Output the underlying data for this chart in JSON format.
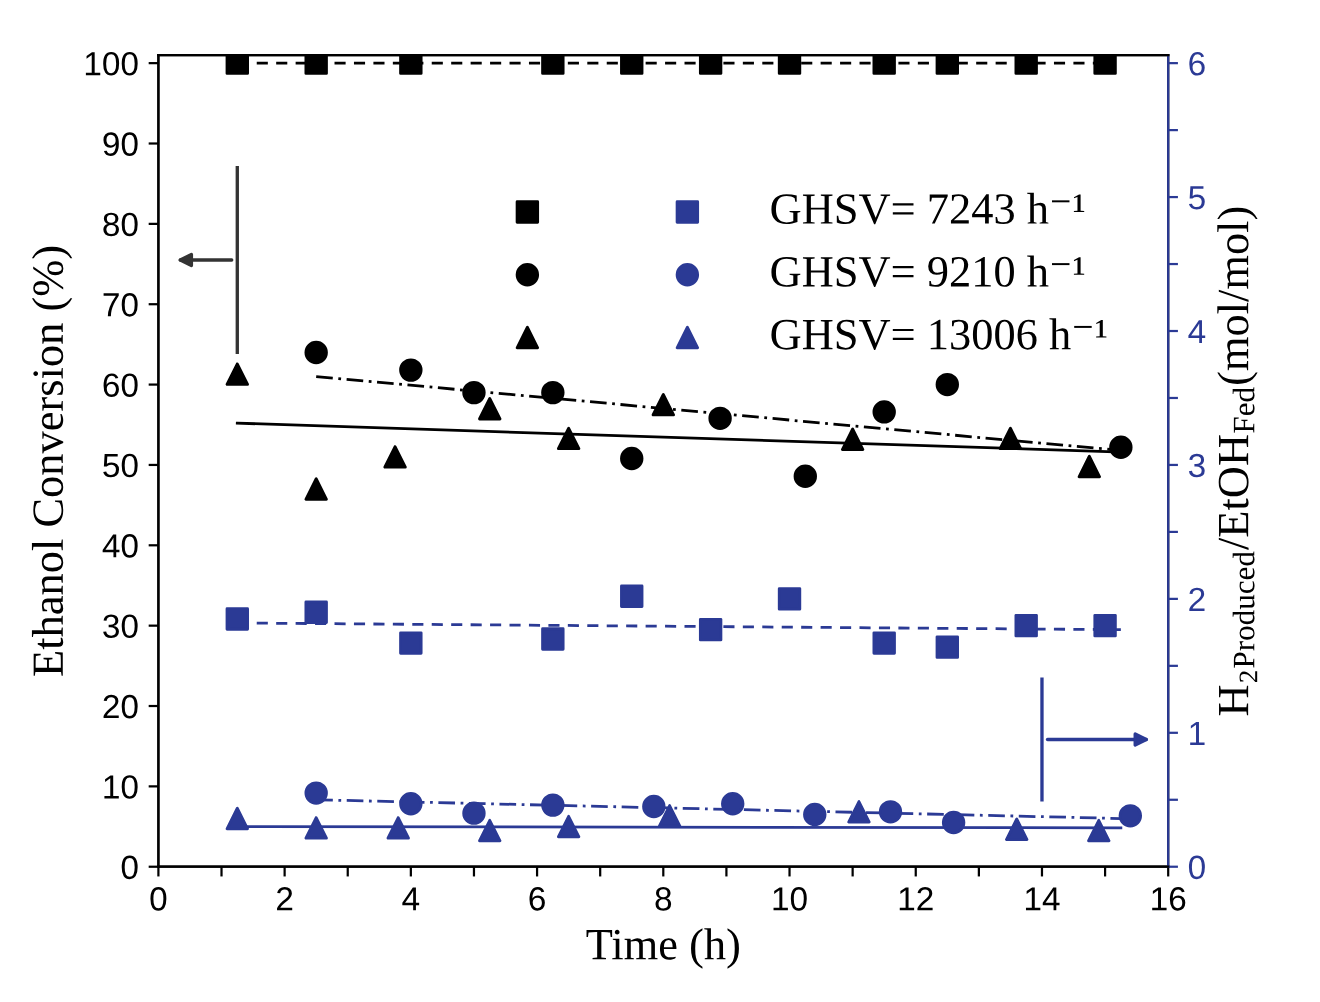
{
  "chart_data": {
    "type": "scatter",
    "xlabel": "Time (h)",
    "ylabel": "Ethanol Conversion (%)",
    "y2label": "H₂$_{Produced}$/EtOH$_{Fed}$(mol/mol)",
    "xlim": [
      0,
      16
    ],
    "xticks": [
      0,
      {
        "value": 1,
        "label": null
      },
      2,
      {
        "value": 3,
        "label": null
      },
      4,
      {
        "value": 5,
        "label": null
      },
      6,
      {
        "value": 7,
        "label": null
      },
      8,
      {
        "value": 9,
        "label": null
      },
      10,
      {
        "value": 11,
        "label": null
      },
      12,
      {
        "value": 13,
        "label": null
      },
      14,
      {
        "value": 15,
        "label": null
      },
      16
    ],
    "ylim": [
      0,
      101
    ],
    "yticks": [
      0,
      10,
      20,
      30,
      40,
      50,
      60,
      70,
      80,
      90,
      100
    ],
    "y2lim": [
      0,
      6.06
    ],
    "y2ticks": [
      0,
      {
        "value": 0.5,
        "label": null
      },
      1,
      {
        "value": 1.5,
        "label": null
      },
      2,
      {
        "value": 2.5,
        "label": null
      },
      3,
      {
        "value": 3.5,
        "label": null
      },
      4,
      {
        "value": 4.5,
        "label": null
      },
      5,
      {
        "value": 5.5,
        "label": null
      },
      6
    ],
    "legend": "top right",
    "grid": false,
    "series": [
      {
        "color": "#000000",
        "marker": "square",
        "x": [
          1.25,
          2.5,
          4,
          6.25,
          7.5,
          8.75,
          10,
          11.5,
          12.5,
          13.75,
          15
        ],
        "values": [
          100,
          100,
          100,
          100,
          100,
          100,
          100,
          100,
          100,
          100,
          100
        ]
      },
      {
        "color": "#000000",
        "marker": "circle",
        "x": [
          2.5,
          4,
          5,
          6.25,
          7.5,
          8.9,
          10.25,
          11.5,
          12.5,
          15.25
        ],
        "values": [
          64,
          61.8,
          59,
          59,
          50.8,
          55.8,
          48.6,
          56.6,
          60,
          52.2
        ]
      },
      {
        "color": "#000000",
        "marker": "triangle",
        "x": [
          1.25,
          2.5,
          3.75,
          5.25,
          6.5,
          8,
          11,
          13.5,
          14.75
        ],
        "values": [
          61.3,
          47,
          51,
          57,
          53.3,
          57.5,
          53.2,
          53.3,
          49.8
        ]
      },
      {
        "name": "GHSV= 7243 h⁻¹",
        "color": "#2b3a95",
        "marker": "square",
        "axis": "y2",
        "x": [
          1.25,
          2.5,
          4,
          6.25,
          7.5,
          8.75,
          10,
          11.5,
          12.5,
          13.75,
          15
        ],
        "values": [
          1.85,
          1.9,
          1.67,
          1.7,
          2.02,
          1.77,
          2.0,
          1.67,
          1.64,
          1.8,
          1.8
        ]
      },
      {
        "name": "GHSV= 9210 h⁻¹",
        "color": "#2b3a95",
        "marker": "circle",
        "axis": "y2",
        "x": [
          2.5,
          4,
          5,
          6.25,
          7.85,
          9.1,
          10.4,
          11.6,
          12.6,
          15.4
        ],
        "values": [
          0.55,
          0.47,
          0.4,
          0.46,
          0.45,
          0.47,
          0.39,
          0.41,
          0.33,
          0.38
        ]
      },
      {
        "name": "GHSV= 13006 h⁻¹",
        "color": "#2b3a95",
        "marker": "triangle",
        "axis": "y2",
        "x": [
          1.25,
          2.5,
          3.8,
          5.25,
          6.5,
          8.1,
          11.1,
          13.6,
          14.9
        ],
        "values": [
          0.36,
          0.29,
          0.29,
          0.27,
          0.3,
          0.38,
          0.41,
          0.28,
          0.27
        ]
      },
      {
        "type": "line",
        "color": "#000000",
        "line_style": "dashed",
        "x": [
          1.25,
          15
        ],
        "values": [
          100,
          100
        ]
      },
      {
        "type": "line",
        "color": "#000000",
        "line_style": "dashdot",
        "x": [
          2.5,
          15.25
        ],
        "values": [
          61,
          51.8
        ]
      },
      {
        "type": "line",
        "color": "#000000",
        "line_style": "solid",
        "x": [
          1.25,
          15.25
        ],
        "values": [
          55.2,
          51.6
        ]
      },
      {
        "type": "line",
        "color": "#2b3a95",
        "line_style": "dashed",
        "axis": "y2",
        "x": [
          1.25,
          15.25
        ],
        "values": [
          1.82,
          1.77
        ]
      },
      {
        "type": "line",
        "color": "#2b3a95",
        "line_style": "dashdot",
        "axis": "y2",
        "x": [
          2.5,
          15.25
        ],
        "values": [
          0.5,
          0.36
        ]
      },
      {
        "type": "line",
        "color": "#2b3a95",
        "line_style": "solid",
        "axis": "y2",
        "x": [
          1.25,
          15.25
        ],
        "values": [
          0.3,
          0.29
        ]
      }
    ]
  }
}
